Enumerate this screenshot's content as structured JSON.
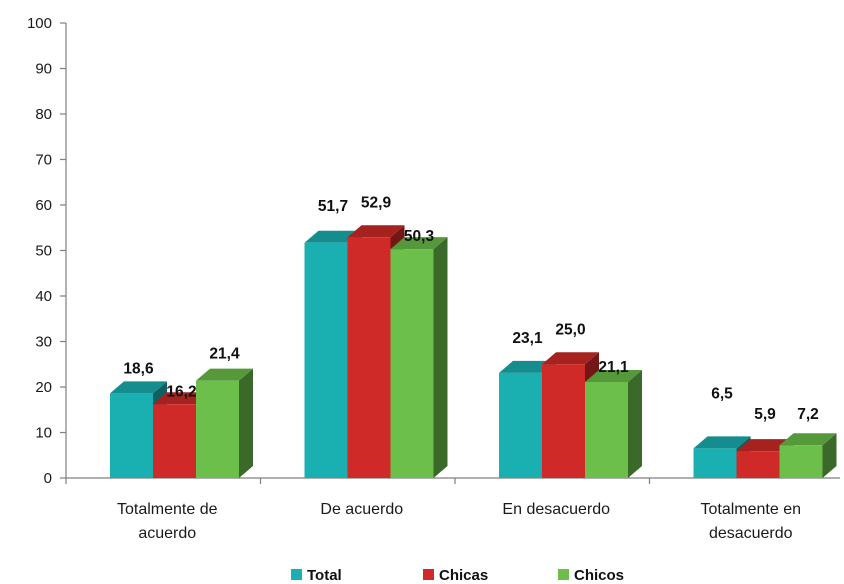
{
  "chart_data": {
    "type": "bar",
    "style": "3d-clustered-column",
    "categories": [
      [
        "Totalmente de",
        "acuerdo"
      ],
      [
        "De acuerdo"
      ],
      [
        "En desacuerdo"
      ],
      [
        "Totalmente en",
        "desacuerdo"
      ]
    ],
    "series": [
      {
        "name": "Total",
        "color": "#1aafb0",
        "values": [
          18.6,
          51.7,
          23.1,
          6.5
        ],
        "labels": [
          "18,6",
          "51,7",
          "23,1",
          "6,5"
        ]
      },
      {
        "name": "Chicas",
        "color": "#cf2a27",
        "values": [
          16.2,
          52.9,
          25.0,
          5.9
        ],
        "labels": [
          "16,2",
          "52,9",
          "25,0",
          "5,9"
        ]
      },
      {
        "name": "Chicos",
        "color": "#6cbf4a",
        "values": [
          21.4,
          50.3,
          21.1,
          7.2
        ],
        "labels": [
          "21,4",
          "50,3",
          "21,1",
          "7,2"
        ]
      }
    ],
    "ylim": [
      0,
      100
    ],
    "yticks": [
      "0",
      "10",
      "20",
      "30",
      "40",
      "50",
      "60",
      "70",
      "80",
      "90",
      "100"
    ],
    "title": "",
    "xlabel": "",
    "ylabel": "",
    "grid": false,
    "legend_position": "bottom"
  }
}
